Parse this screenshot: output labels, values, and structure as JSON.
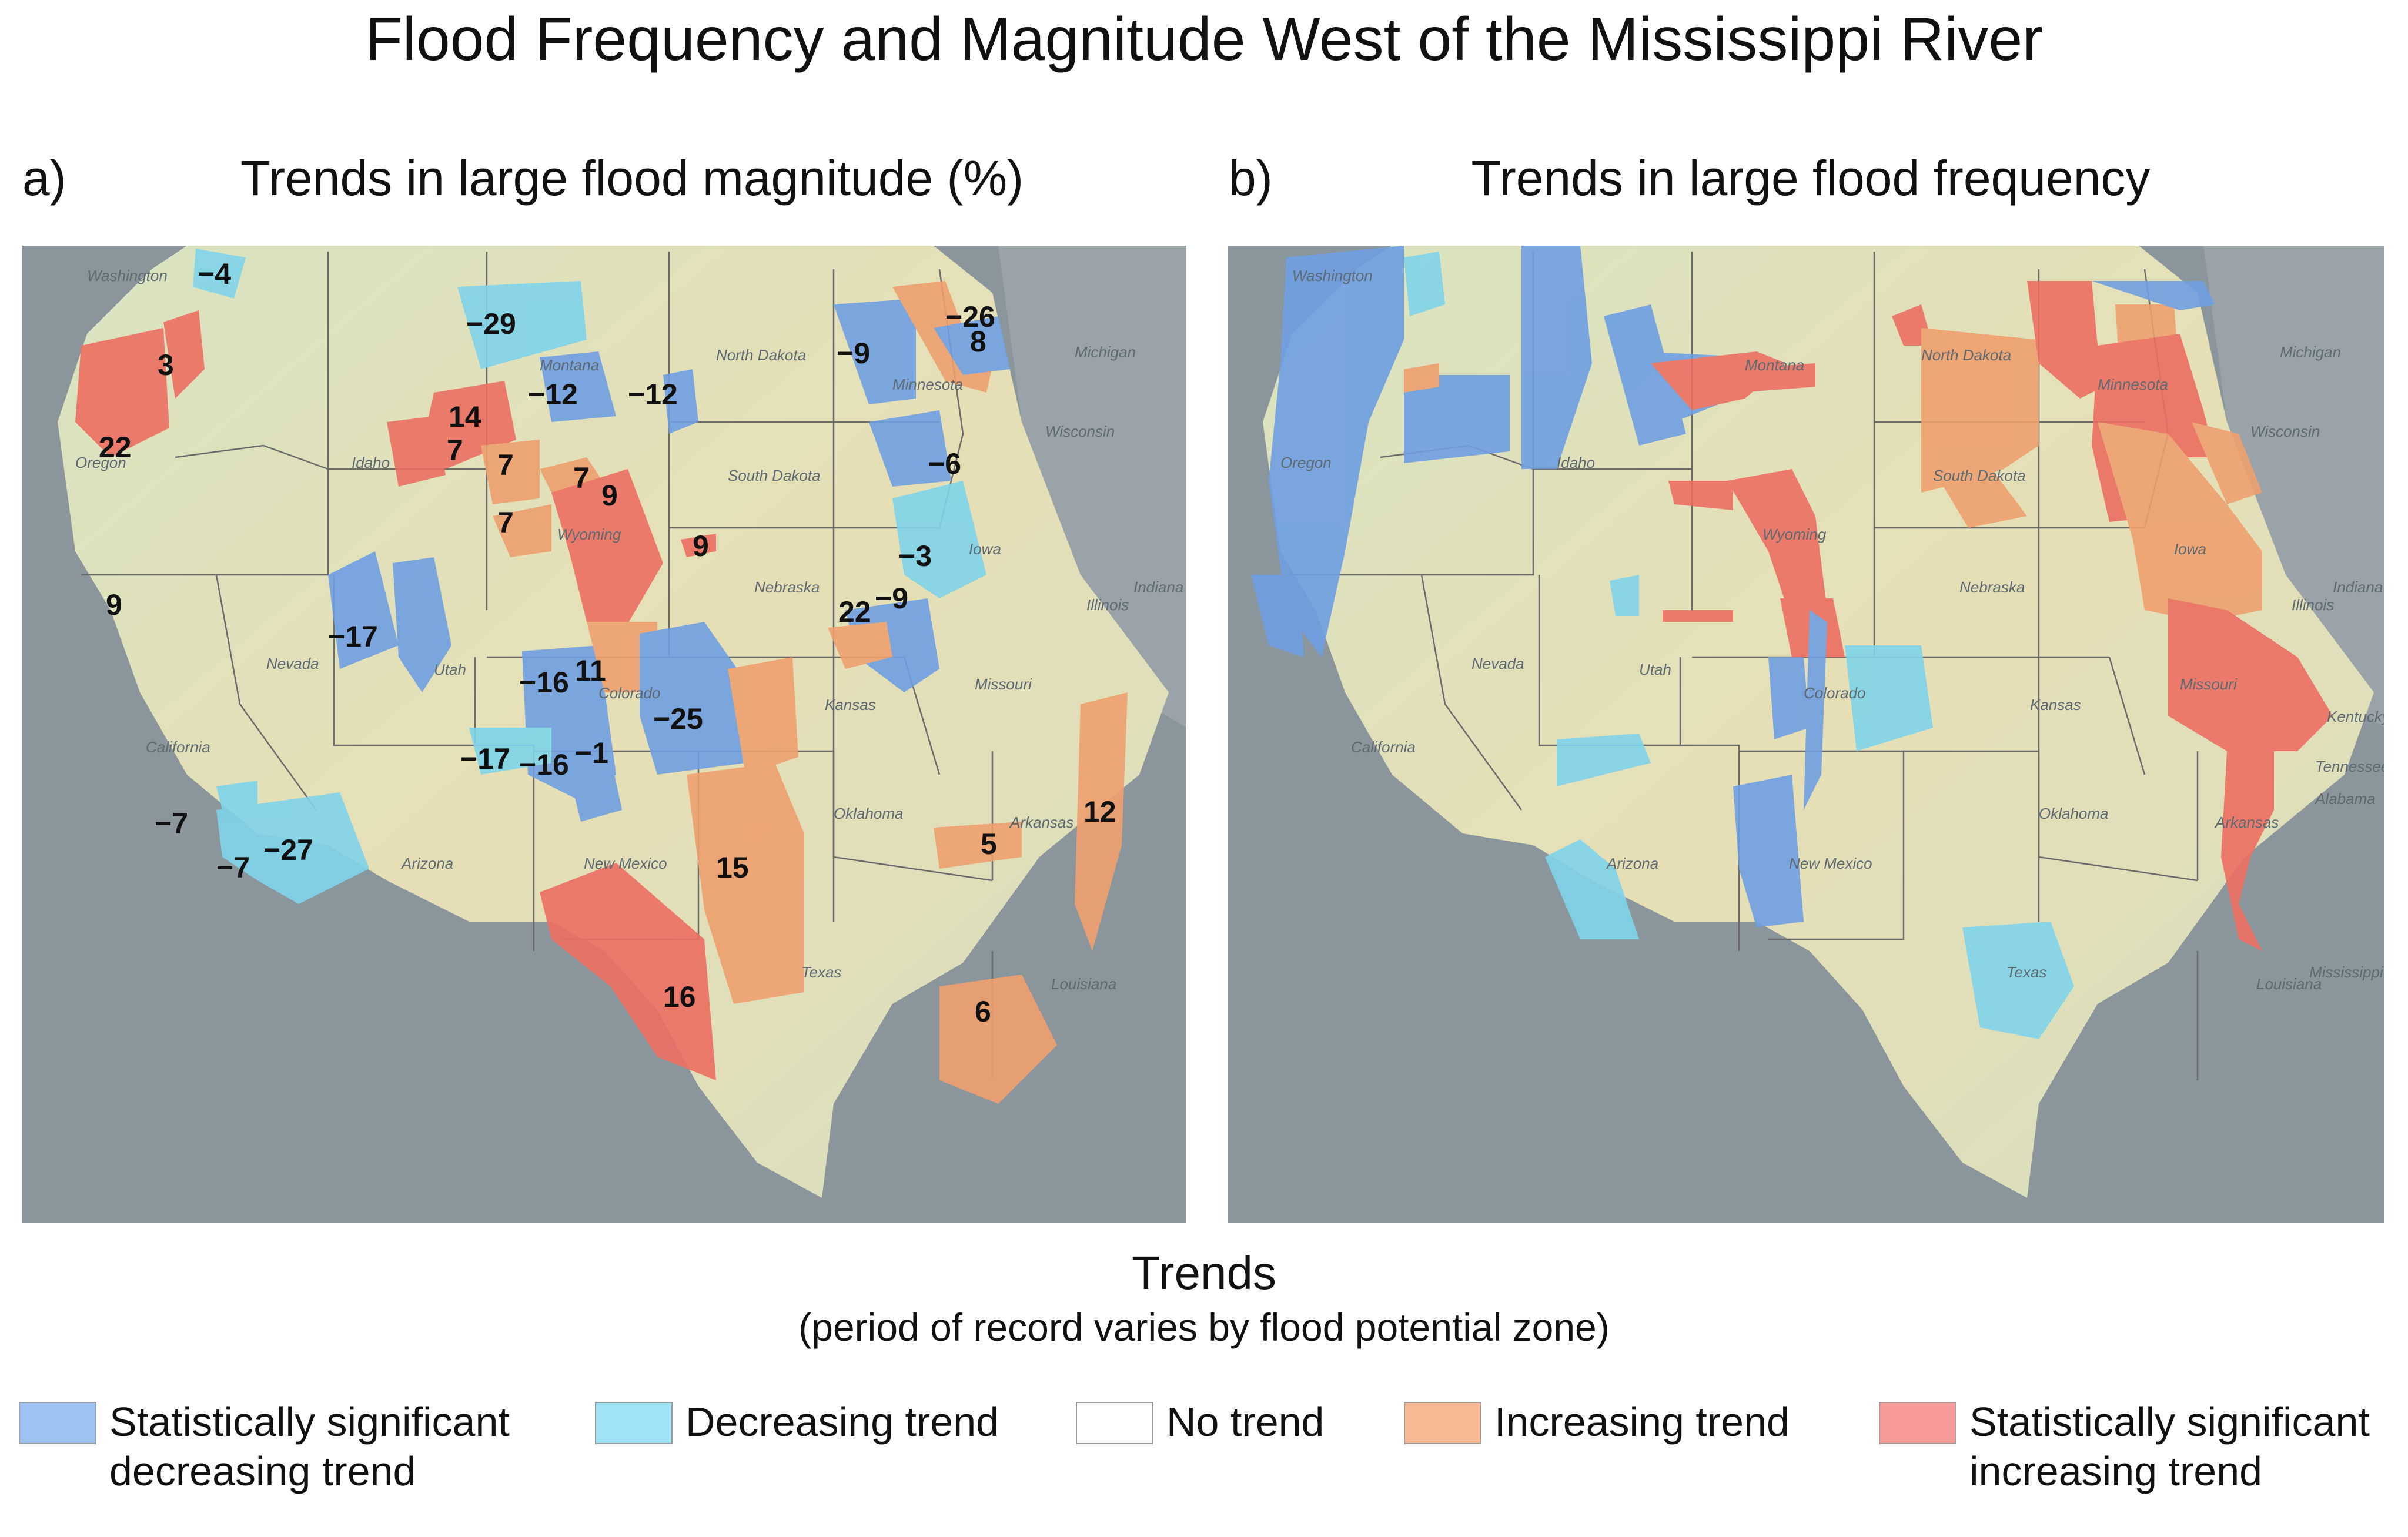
{
  "title": "Flood Frequency and Magnitude West of the Mississippi River",
  "panel_a": {
    "letter": "a)",
    "title": "Trends in large flood magnitude (%)",
    "values": [
      "−4",
      "3",
      "22",
      "−29",
      "−12",
      "−12",
      "14",
      "7",
      "7",
      "7",
      "7",
      "9",
      "9",
      "9",
      "−17",
      "−16",
      "11",
      "−25",
      "−17",
      "−16",
      "−1",
      "−7",
      "−27",
      "−7",
      "15",
      "16",
      "−9",
      "−26",
      "8",
      "−6",
      "−3",
      "−9",
      "22",
      "5",
      "12",
      "6"
    ]
  },
  "panel_b": {
    "letter": "b)",
    "title": "Trends in large flood frequency"
  },
  "state_labels": [
    "Washington",
    "Oregon",
    "California",
    "Nevada",
    "Idaho",
    "Montana",
    "Wyoming",
    "Utah",
    "Colorado",
    "Arizona",
    "New Mexico",
    "Texas",
    "Oklahoma",
    "Kansas",
    "Nebraska",
    "South Dakota",
    "North Dakota",
    "Minnesota",
    "Iowa",
    "Missouri",
    "Arkansas",
    "Louisiana",
    "Wisconsin",
    "Illinois",
    "Michigan",
    "Indiana",
    "Kentucky",
    "Tennessee",
    "Alabama",
    "Mississippi"
  ],
  "legend": {
    "title": "Trends",
    "subtitle": "(period of record varies by flood potential zone)",
    "items": [
      {
        "label": "Statistically significant\ndecreasing trend",
        "color": "#9dc3f2"
      },
      {
        "label": "Decreasing trend",
        "color": "#9fe4f6"
      },
      {
        "label": "No trend",
        "color": "#ffffff"
      },
      {
        "label": "Increasing trend",
        "color": "#f8b994"
      },
      {
        "label": "Statistically significant\nincreasing trend",
        "color": "#f79a9a"
      }
    ]
  },
  "colors": {
    "sig_decrease": "#6f9fe2",
    "decrease": "#7fd4ea",
    "increase": "#eea06e",
    "sig_increase": "#ec6f62",
    "land": "#e7dfb8",
    "water": "#8a949b"
  }
}
